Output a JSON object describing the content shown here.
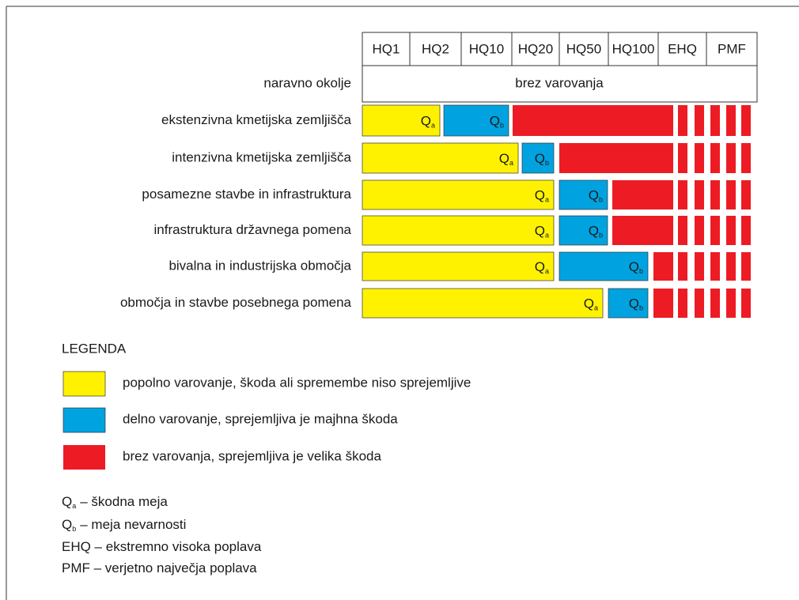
{
  "header": {
    "columns": [
      "HQ1",
      "HQ2",
      "HQ10",
      "HQ20",
      "HQ50",
      "HQ100",
      "EHQ",
      "PMF"
    ]
  },
  "top_row": {
    "label": "naravno okolje",
    "text": "brez varovanja"
  },
  "rows": [
    {
      "label": "ekstenzivna kmetijska zemljišča",
      "qa": {
        "symbol": "Q",
        "sub": "a"
      },
      "qb": {
        "symbol": "Q",
        "sub": "b"
      }
    },
    {
      "label": "intenzivna kmetijska zemljišča",
      "qa": {
        "symbol": "Q",
        "sub": "a"
      },
      "qb": {
        "symbol": "Q",
        "sub": "b"
      }
    },
    {
      "label": "posamezne stavbe in infrastruktura",
      "qa": {
        "symbol": "Q",
        "sub": "a"
      },
      "qb": {
        "symbol": "Q",
        "sub": "b"
      }
    },
    {
      "label": "infrastruktura državnega pomena",
      "qa": {
        "symbol": "Q",
        "sub": "a"
      },
      "qb": {
        "symbol": "Q",
        "sub": "b"
      }
    },
    {
      "label": "bivalna in industrijska območja",
      "qa": {
        "symbol": "Q",
        "sub": "a"
      },
      "qb": {
        "symbol": "Q",
        "sub": "b"
      }
    },
    {
      "label": "območja in stavbe posebnega pomena",
      "qa": {
        "symbol": "Q",
        "sub": "a"
      },
      "qb": {
        "symbol": "Q",
        "sub": "b"
      }
    }
  ],
  "legend": {
    "title": "LEGENDA",
    "items": [
      "popolno varovanje, škoda ali spremembe niso sprejemljive",
      "delno varovanje, sprejemljiva je majhna škoda",
      "brez varovanja, sprejemljiva je velika škoda"
    ],
    "notes": [
      {
        "symbol": "Q",
        "sub": "a",
        "text": "– škodna meja"
      },
      {
        "symbol": "Q",
        "sub": "b",
        "text": "– meja nevarnosti"
      },
      {
        "text": "EHQ – ekstremno visoka poplava"
      },
      {
        "text": "PMF – verjetno največja poplava"
      }
    ]
  }
}
